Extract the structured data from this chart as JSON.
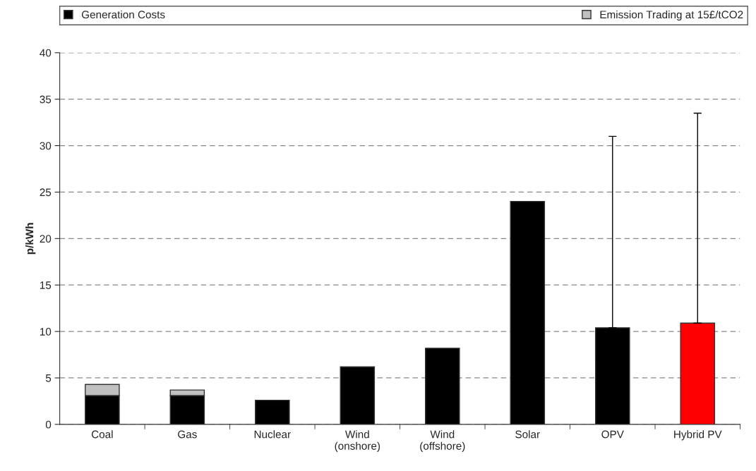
{
  "chart_data": {
    "type": "bar",
    "stacked": true,
    "ylabel": "p/kWh",
    "categories": [
      "Coal",
      "Gas",
      "Nuclear",
      "Wind\n(onshore)",
      "Wind\n(offshore)",
      "Solar",
      "OPV",
      "Hybrid PV"
    ],
    "series": [
      {
        "name": "Generation Costs",
        "color": "#000000",
        "colors": [
          "#000000",
          "#000000",
          "#000000",
          "#000000",
          "#000000",
          "#000000",
          "#000000",
          "#ff0000"
        ],
        "values": [
          3.1,
          3.1,
          2.6,
          6.2,
          8.2,
          24.0,
          10.4,
          10.9
        ],
        "errors": [
          null,
          null,
          null,
          null,
          null,
          null,
          [
            10.4,
            31.0
          ],
          [
            10.9,
            33.5
          ]
        ]
      },
      {
        "name": "Emission Trading at 15£/tCO2",
        "color": "#c0c0c0",
        "values": [
          1.2,
          0.6,
          null,
          null,
          null,
          null,
          null,
          null
        ]
      }
    ],
    "ylim": [
      0,
      40
    ],
    "yticks": [
      0,
      5,
      10,
      15,
      20,
      25,
      30,
      35,
      40
    ],
    "grid": "y",
    "legend": "top"
  }
}
